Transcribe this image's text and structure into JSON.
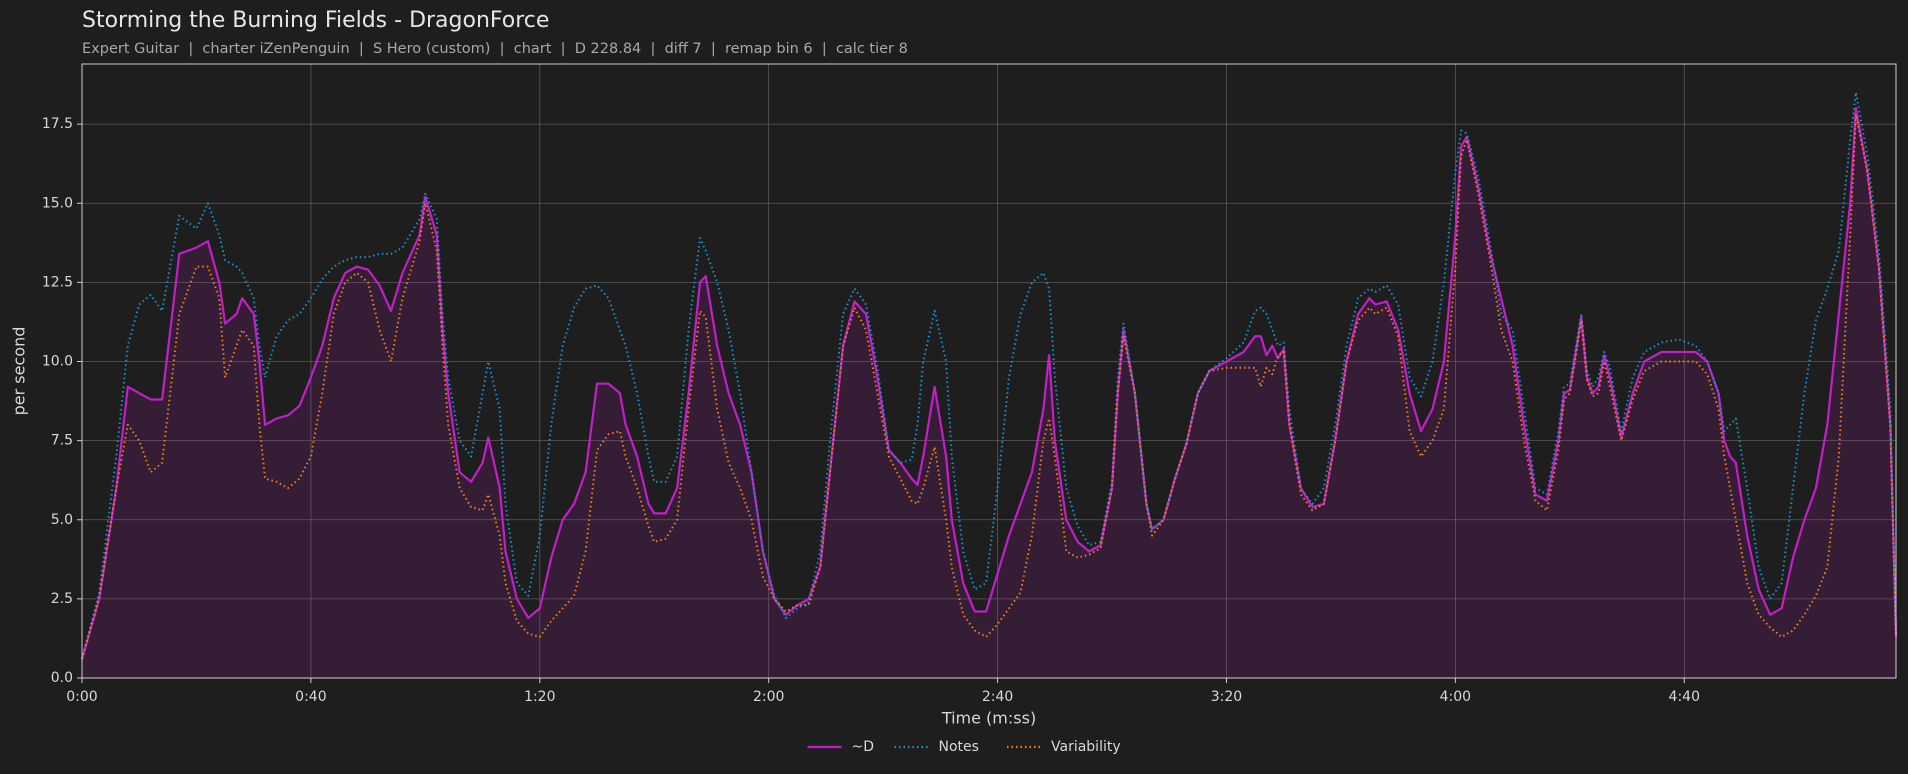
{
  "chart_data": {
    "type": "line",
    "title": "Storming the Burning Fields - DragonForce",
    "subtitle": "Expert Guitar  |  charter iZenPenguin  |  S Hero (custom)  |  chart  |  D 228.84  |  diff 7  |  remap bin 6  |  calc tier 8",
    "x_label": "Time (m:ss)",
    "y_label": "per second",
    "xlim": [
      0,
      317
    ],
    "ylim": [
      0,
      19.4
    ],
    "xticks": [
      {
        "value": 0,
        "label": "0:00"
      },
      {
        "value": 40,
        "label": "0:40"
      },
      {
        "value": 80,
        "label": "1:20"
      },
      {
        "value": 120,
        "label": "2:00"
      },
      {
        "value": 160,
        "label": "2:40"
      },
      {
        "value": 200,
        "label": "3:20"
      },
      {
        "value": 240,
        "label": "4:00"
      },
      {
        "value": 280,
        "label": "4:40"
      }
    ],
    "yticks": [
      0.0,
      2.5,
      5.0,
      7.5,
      10.0,
      12.5,
      15.0,
      17.5
    ],
    "grid": true,
    "legend": "bottom",
    "x": [
      0,
      3,
      6,
      8,
      10,
      12,
      14,
      17,
      20,
      22,
      24,
      25,
      27,
      28,
      30,
      31,
      32,
      34,
      36,
      38,
      40,
      42,
      44,
      46,
      48,
      50,
      52,
      54,
      56,
      59,
      60,
      62,
      63,
      64,
      66,
      68,
      70,
      71,
      73,
      74,
      76,
      78,
      80,
      82,
      84,
      86,
      88,
      90,
      92,
      94,
      95,
      97,
      99,
      100,
      102,
      104,
      106,
      108,
      109,
      111,
      113,
      115,
      117,
      119,
      121,
      123,
      125,
      127,
      129,
      131,
      133,
      135,
      137,
      139,
      141,
      143,
      145,
      146,
      147,
      149,
      151,
      152,
      154,
      156,
      158,
      160,
      162,
      164,
      166,
      168,
      169,
      170,
      172,
      174,
      176,
      178,
      180,
      181,
      182,
      184,
      186,
      187,
      189,
      191,
      193,
      195,
      197,
      200,
      203,
      205,
      206,
      207,
      208,
      209,
      210,
      211,
      213,
      215,
      217,
      219,
      221,
      223,
      225,
      226,
      228,
      230,
      232,
      234,
      236,
      238,
      240,
      241,
      242,
      244,
      246,
      248,
      250,
      252,
      254,
      256,
      258,
      259,
      260,
      262,
      263,
      264,
      265,
      266,
      267,
      269,
      271,
      273,
      276,
      279,
      282,
      284,
      286,
      287,
      288,
      289,
      291,
      293,
      295,
      297,
      299,
      301,
      303,
      305,
      307,
      309,
      310,
      312,
      314,
      316,
      317
    ],
    "series": [
      {
        "name": "~D",
        "color": "#c21fc8",
        "style": "solid",
        "fill": true,
        "values": [
          0.6,
          2.5,
          6,
          9.2,
          9,
          8.8,
          8.8,
          13.4,
          13.6,
          13.8,
          12.5,
          11.2,
          11.5,
          12,
          11.5,
          10,
          8,
          8.2,
          8.3,
          8.6,
          9.5,
          10.5,
          12,
          12.8,
          13,
          12.9,
          12.4,
          11.6,
          12.8,
          14,
          15.2,
          14,
          11,
          9,
          6.5,
          6.2,
          6.8,
          7.6,
          6,
          4,
          2.5,
          1.9,
          2.2,
          3.8,
          5,
          5.5,
          6.5,
          9.3,
          9.3,
          9,
          8,
          7,
          5.5,
          5.2,
          5.2,
          6,
          9,
          12.5,
          12.7,
          10.5,
          9,
          8,
          6.5,
          4,
          2.5,
          2,
          2.3,
          2.5,
          3.5,
          7,
          10.5,
          11.9,
          11.5,
          9.5,
          7.2,
          6.8,
          6.3,
          6.1,
          7,
          9.2,
          7,
          5,
          3,
          2.1,
          2.1,
          3.3,
          4.5,
          5.5,
          6.5,
          8.5,
          10.2,
          7.5,
          5,
          4.3,
          4,
          4.2,
          6,
          9,
          11,
          9,
          5.5,
          4.7,
          5,
          6.3,
          7.4,
          9,
          9.7,
          10,
          10.3,
          10.8,
          10.8,
          10.2,
          10.5,
          10.1,
          10.4,
          8,
          6,
          5.4,
          5.5,
          7.5,
          10,
          11.5,
          12,
          11.8,
          11.9,
          11,
          9,
          7.8,
          8.5,
          10,
          14,
          16.8,
          17.1,
          15.5,
          13.5,
          12,
          10.5,
          8,
          5.8,
          5.6,
          7.5,
          9,
          9.1,
          11.4,
          9.5,
          9,
          9.2,
          10.2,
          9.5,
          7.6,
          9,
          10,
          10.3,
          10.3,
          10.3,
          10,
          9,
          7.5,
          7,
          6.8,
          4.5,
          2.8,
          2,
          2.2,
          3.8,
          5,
          6,
          8,
          11.5,
          15,
          18,
          16,
          13,
          8,
          1.3
        ]
      },
      {
        "name": "Notes",
        "color": "#1f8fd0",
        "style": "dotted",
        "fill": false,
        "values": [
          0.6,
          2.7,
          7,
          10.5,
          11.8,
          12.1,
          11.6,
          14.6,
          14.2,
          15,
          14,
          13.2,
          13,
          12.8,
          12,
          10.5,
          9.5,
          10.8,
          11.3,
          11.5,
          12,
          12.6,
          13,
          13.2,
          13.3,
          13.3,
          13.4,
          13.4,
          13.6,
          14.5,
          15.3,
          14.5,
          11.5,
          9.5,
          7.5,
          7,
          9,
          10,
          8.5,
          5.5,
          3,
          2.6,
          4.5,
          8,
          10.5,
          11.7,
          12.3,
          12.4,
          12,
          11,
          10.5,
          9,
          7,
          6.2,
          6.2,
          7,
          11,
          13.9,
          13.5,
          12.5,
          11,
          9,
          6.5,
          4,
          2.6,
          1.9,
          2.2,
          2.4,
          4,
          8,
          11.5,
          12.3,
          11.8,
          9.8,
          7.2,
          6.8,
          6.9,
          8,
          10,
          11.6,
          10,
          7,
          4,
          2.8,
          3,
          6,
          9.5,
          11.5,
          12.5,
          12.8,
          12.3,
          9.5,
          6,
          4.8,
          4.2,
          4.3,
          6.2,
          9.5,
          11.2,
          9,
          5.5,
          4.7,
          5,
          6.3,
          7.4,
          9,
          9.7,
          10.1,
          10.6,
          11.6,
          11.7,
          11.5,
          11,
          10.5,
          10.6,
          8.5,
          6,
          5.5,
          6,
          8,
          10.5,
          12,
          12.3,
          12.2,
          12.4,
          11.8,
          9.5,
          8.9,
          10,
          12.5,
          16,
          17.3,
          17.2,
          15.8,
          13.8,
          11.5,
          11,
          8.5,
          6,
          5.8,
          7.8,
          9.2,
          9.3,
          11.5,
          9.7,
          9.2,
          9.5,
          10.3,
          9.8,
          7.8,
          9.5,
          10.3,
          10.6,
          10.7,
          10.5,
          10,
          9,
          7.8,
          8,
          8.2,
          6,
          3.5,
          2.5,
          3,
          6,
          9,
          11.3,
          12.3,
          13.5,
          17,
          18.5,
          16.5,
          13.5,
          8.5,
          1.5
        ]
      },
      {
        "name": "Variability",
        "color": "#f07f1e",
        "style": "dotted",
        "fill": false,
        "values": [
          0.6,
          2.5,
          6,
          8,
          7.5,
          6.5,
          6.8,
          11.5,
          13,
          13,
          12,
          9.5,
          10.5,
          11,
          10.5,
          8,
          6.3,
          6.2,
          6,
          6.3,
          7,
          9,
          11.5,
          12.5,
          12.8,
          12.5,
          11,
          10,
          12,
          13.8,
          15,
          13.5,
          10.5,
          8,
          6,
          5.4,
          5.3,
          5.8,
          4.5,
          3,
          1.8,
          1.4,
          1.3,
          1.8,
          2.2,
          2.6,
          4,
          7.2,
          7.7,
          7.8,
          7,
          6,
          4.8,
          4.3,
          4.4,
          5,
          8.5,
          11.6,
          11.4,
          8.5,
          6.8,
          6,
          5,
          3.2,
          2.5,
          2.1,
          2.3,
          2.3,
          3.5,
          7,
          10.5,
          11.7,
          11,
          9,
          7,
          6.3,
          5.6,
          5.5,
          6,
          7.3,
          5,
          3.5,
          2,
          1.5,
          1.3,
          1.7,
          2.2,
          2.7,
          4.5,
          7.5,
          8.2,
          7,
          4,
          3.8,
          3.9,
          4.1,
          6,
          9,
          10.8,
          9,
          5.5,
          4.5,
          5,
          6.3,
          7.4,
          9,
          9.7,
          9.8,
          9.8,
          9.8,
          9.2,
          9.8,
          9.6,
          10.2,
          10.3,
          8,
          5.8,
          5.3,
          5.5,
          7.5,
          10,
          11.3,
          11.7,
          11.5,
          11.7,
          10.8,
          7.8,
          7,
          7.5,
          8.5,
          13,
          16.5,
          17,
          15.3,
          13.3,
          11,
          10,
          7.5,
          5.6,
          5.3,
          7.2,
          8.8,
          9,
          11.3,
          9.4,
          8.9,
          9,
          10,
          9.2,
          7.5,
          8.8,
          9.7,
          10,
          10,
          10,
          9.6,
          8.5,
          7,
          6,
          5,
          3,
          2,
          1.6,
          1.3,
          1.5,
          2,
          2.6,
          3.5,
          7,
          14,
          17.8,
          16,
          13,
          8,
          1.3
        ]
      }
    ]
  }
}
